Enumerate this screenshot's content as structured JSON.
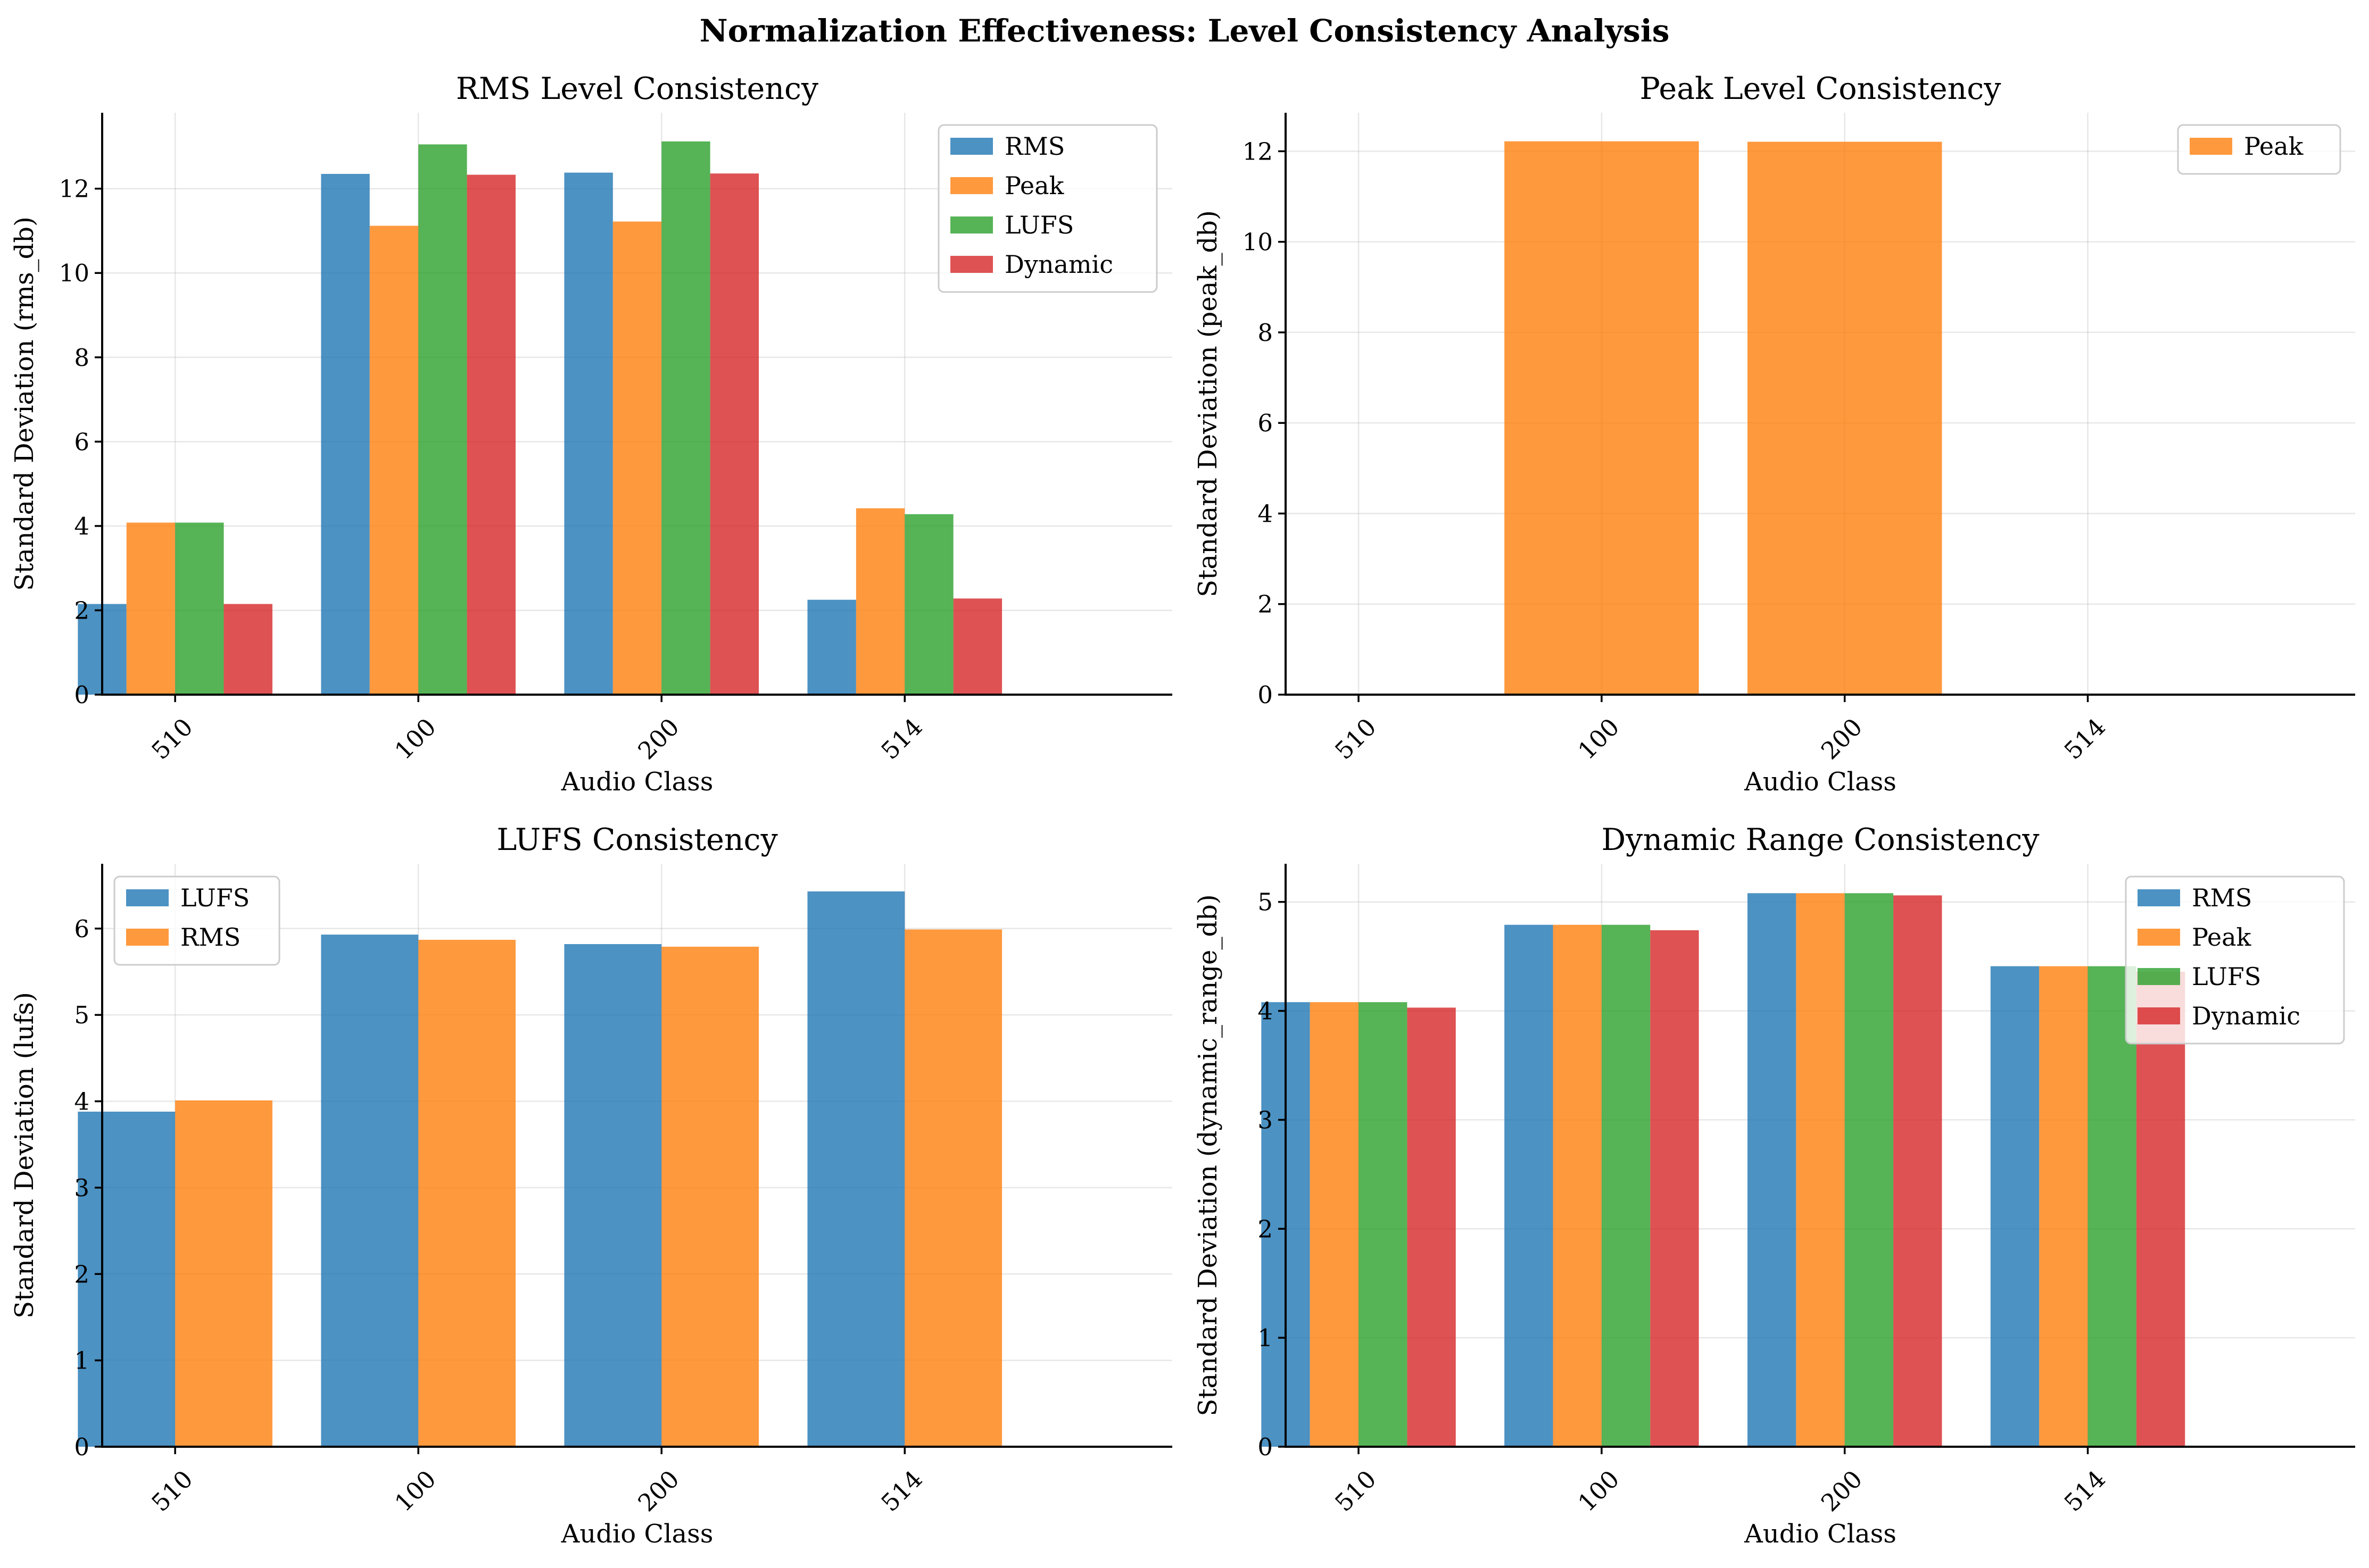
{
  "figure": {
    "suptitle": "Normalization Effectiveness: Level Consistency Analysis"
  },
  "colors": {
    "RMS": "#1f77b4",
    "Peak": "#ff7f0e",
    "LUFS": "#2ca02c",
    "Dynamic": "#d62728"
  },
  "chart_data": [
    {
      "type": "bar",
      "title": "RMS Level Consistency",
      "xlabel": "Audio Class",
      "ylabel": "Standard Deviation (rms_db)",
      "categories": [
        "510",
        "100",
        "200",
        "514"
      ],
      "ylim": [
        0,
        13.8
      ],
      "yticks": [
        0,
        2,
        4,
        6,
        8,
        10,
        12
      ],
      "grid": true,
      "legend_position": "top-right",
      "series": [
        {
          "name": "RMS",
          "values": [
            2.15,
            12.35,
            12.38,
            2.25
          ]
        },
        {
          "name": "Peak",
          "values": [
            4.08,
            11.12,
            11.22,
            4.42
          ]
        },
        {
          "name": "LUFS",
          "values": [
            4.08,
            13.05,
            13.12,
            4.28
          ]
        },
        {
          "name": "Dynamic",
          "values": [
            2.15,
            12.33,
            12.36,
            2.28
          ]
        }
      ]
    },
    {
      "type": "bar",
      "title": "Peak Level Consistency",
      "xlabel": "Audio Class",
      "ylabel": "Standard Deviation (peak_db)",
      "categories": [
        "510",
        "100",
        "200",
        "514"
      ],
      "ylim": [
        0,
        12.85
      ],
      "yticks": [
        0,
        2,
        4,
        6,
        8,
        10,
        12
      ],
      "grid": true,
      "legend_position": "top-right",
      "series": [
        {
          "name": "Peak",
          "values": [
            0,
            12.22,
            12.21,
            0
          ]
        }
      ]
    },
    {
      "type": "bar",
      "title": "LUFS Consistency",
      "xlabel": "Audio Class",
      "ylabel": "Standard Deviation (lufs)",
      "categories": [
        "510",
        "100",
        "200",
        "514"
      ],
      "ylim": [
        0,
        6.75
      ],
      "yticks": [
        0,
        1,
        2,
        3,
        4,
        5,
        6
      ],
      "grid": true,
      "legend_position": "top-left",
      "series": [
        {
          "name": "LUFS",
          "color_key": "RMS",
          "values": [
            3.88,
            5.93,
            5.82,
            6.43
          ]
        },
        {
          "name": "RMS",
          "color_key": "Peak",
          "values": [
            4.01,
            5.87,
            5.79,
            5.99
          ]
        }
      ]
    },
    {
      "type": "bar",
      "title": "Dynamic Range Consistency",
      "xlabel": "Audio Class",
      "ylabel": "Standard Deviation (dynamic_range_db)",
      "categories": [
        "510",
        "100",
        "200",
        "514"
      ],
      "ylim": [
        0,
        5.35
      ],
      "yticks": [
        0,
        1,
        2,
        3,
        4,
        5
      ],
      "grid": true,
      "legend_position": "top-right",
      "series": [
        {
          "name": "RMS",
          "values": [
            4.08,
            4.79,
            5.08,
            4.41
          ]
        },
        {
          "name": "Peak",
          "values": [
            4.08,
            4.79,
            5.08,
            4.41
          ]
        },
        {
          "name": "LUFS",
          "values": [
            4.08,
            4.79,
            5.08,
            4.41
          ]
        },
        {
          "name": "Dynamic",
          "values": [
            4.03,
            4.74,
            5.06,
            4.36
          ]
        }
      ]
    }
  ]
}
